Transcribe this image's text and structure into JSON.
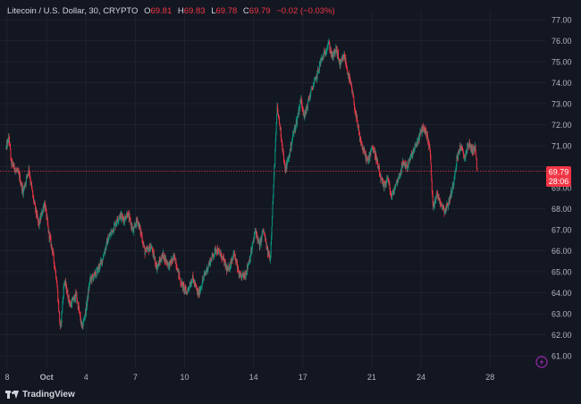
{
  "legend": {
    "symbol": "Litecoin / U.S. Dollar, 30, CRYPTO",
    "open_label": "O",
    "open": "69.81",
    "high_label": "H",
    "high": "69.83",
    "low_label": "L",
    "low": "69.78",
    "close_label": "C",
    "close": "69.79",
    "change": "−0.02 (−0.03%)"
  },
  "price_tag": {
    "price": "69.79",
    "countdown": "28:06"
  },
  "brand": {
    "name": "TradingView"
  },
  "icons": {
    "logo": "tradingview-logo-icon",
    "flash": "lightning-icon"
  },
  "colors": {
    "background": "#131722",
    "grid": "#1e222d",
    "up": "#089981",
    "down": "#f23645",
    "text": "#b2b5be",
    "price_line": "#f23645",
    "flash_icon": "#9c27b0"
  },
  "chart_data": {
    "type": "candlestick",
    "symbol": "Litecoin / U.S. Dollar",
    "interval": "30",
    "y_ticks": [
      61,
      62,
      63,
      64,
      65,
      66,
      67,
      68,
      69,
      70,
      71,
      72,
      73,
      74,
      75,
      76,
      77
    ],
    "y_tick_labels": [
      "61.00",
      "62.00",
      "63.00",
      "64.00",
      "65.00",
      "66.00",
      "67.00",
      "68.00",
      "69.00",
      "70.00",
      "71.00",
      "72.00",
      "73.00",
      "74.00",
      "75.00",
      "76.00",
      "77.00"
    ],
    "x_ticks": [
      {
        "day": 28,
        "label": "8"
      },
      {
        "day": 30,
        "label": "Oct"
      },
      {
        "day": 32,
        "label": "4"
      },
      {
        "day": 34.5,
        "label": "7"
      },
      {
        "day": 37,
        "label": "10"
      },
      {
        "day": 40.5,
        "label": "14"
      },
      {
        "day": 43,
        "label": "17"
      },
      {
        "day": 46.5,
        "label": "21"
      },
      {
        "day": 49,
        "label": "24"
      },
      {
        "day": 52.5,
        "label": "28"
      }
    ],
    "x_range_days": [
      27.95,
      53.25
    ],
    "y_range": [
      60.45,
      77.3
    ],
    "last_price": 69.79,
    "path": [
      [
        27.95,
        70.9
      ],
      [
        28.1,
        71.4
      ],
      [
        28.2,
        70.2
      ],
      [
        28.6,
        69.6
      ],
      [
        28.8,
        68.8
      ],
      [
        29.1,
        69.9
      ],
      [
        29.3,
        68.6
      ],
      [
        29.6,
        67.2
      ],
      [
        29.9,
        68.3
      ],
      [
        30.1,
        66.9
      ],
      [
        30.3,
        66.0
      ],
      [
        30.5,
        64.7
      ],
      [
        30.7,
        62.2
      ],
      [
        30.9,
        64.6
      ],
      [
        31.2,
        63.4
      ],
      [
        31.5,
        63.9
      ],
      [
        31.8,
        62.3
      ],
      [
        32.0,
        63.2
      ],
      [
        32.2,
        64.6
      ],
      [
        32.5,
        64.9
      ],
      [
        32.8,
        65.5
      ],
      [
        33.1,
        66.5
      ],
      [
        33.4,
        67.1
      ],
      [
        33.7,
        67.7
      ],
      [
        33.95,
        67.5
      ],
      [
        34.1,
        67.8
      ],
      [
        34.4,
        66.9
      ],
      [
        34.6,
        67.5
      ],
      [
        34.8,
        66.8
      ],
      [
        35.0,
        65.9
      ],
      [
        35.3,
        66.2
      ],
      [
        35.6,
        65.2
      ],
      [
        35.9,
        65.8
      ],
      [
        36.2,
        65.3
      ],
      [
        36.5,
        65.7
      ],
      [
        36.8,
        64.5
      ],
      [
        37.1,
        64.0
      ],
      [
        37.4,
        64.7
      ],
      [
        37.7,
        63.9
      ],
      [
        38.0,
        64.8
      ],
      [
        38.3,
        65.5
      ],
      [
        38.6,
        66.1
      ],
      [
        38.9,
        65.7
      ],
      [
        39.2,
        65.0
      ],
      [
        39.5,
        65.9
      ],
      [
        39.8,
        64.7
      ],
      [
        40.1,
        64.9
      ],
      [
        40.4,
        66.0
      ],
      [
        40.6,
        67.0
      ],
      [
        40.8,
        66.2
      ],
      [
        41.0,
        67.0
      ],
      [
        41.2,
        66.0
      ],
      [
        41.35,
        65.6
      ],
      [
        41.5,
        68.8
      ],
      [
        41.7,
        72.8
      ],
      [
        41.9,
        71.5
      ],
      [
        42.1,
        69.8
      ],
      [
        42.3,
        70.5
      ],
      [
        42.5,
        71.5
      ],
      [
        42.7,
        72.2
      ],
      [
        42.9,
        73.2
      ],
      [
        43.1,
        72.4
      ],
      [
        43.3,
        73.2
      ],
      [
        43.5,
        73.8
      ],
      [
        43.7,
        74.3
      ],
      [
        43.9,
        75.0
      ],
      [
        44.1,
        75.4
      ],
      [
        44.3,
        75.9
      ],
      [
        44.5,
        75.2
      ],
      [
        44.7,
        75.6
      ],
      [
        44.9,
        74.8
      ],
      [
        45.1,
        75.3
      ],
      [
        45.3,
        74.4
      ],
      [
        45.5,
        73.6
      ],
      [
        45.7,
        72.4
      ],
      [
        45.9,
        71.3
      ],
      [
        46.1,
        70.7
      ],
      [
        46.3,
        70.2
      ],
      [
        46.5,
        71.0
      ],
      [
        46.7,
        70.5
      ],
      [
        46.9,
        69.6
      ],
      [
        47.1,
        69.0
      ],
      [
        47.3,
        69.5
      ],
      [
        47.5,
        68.5
      ],
      [
        47.7,
        69.1
      ],
      [
        47.9,
        69.6
      ],
      [
        48.1,
        70.2
      ],
      [
        48.3,
        70.0
      ],
      [
        48.5,
        70.5
      ],
      [
        48.7,
        70.9
      ],
      [
        48.9,
        71.4
      ],
      [
        49.1,
        71.9
      ],
      [
        49.3,
        71.5
      ],
      [
        49.45,
        70.8
      ],
      [
        49.6,
        68.1
      ],
      [
        49.8,
        68.7
      ],
      [
        50.0,
        68.3
      ],
      [
        50.2,
        67.9
      ],
      [
        50.4,
        68.3
      ],
      [
        50.6,
        69.0
      ],
      [
        50.8,
        70.3
      ],
      [
        51.0,
        71.0
      ],
      [
        51.2,
        70.4
      ],
      [
        51.4,
        71.1
      ],
      [
        51.6,
        70.8
      ],
      [
        51.75,
        70.9
      ],
      [
        51.85,
        69.79
      ]
    ]
  }
}
